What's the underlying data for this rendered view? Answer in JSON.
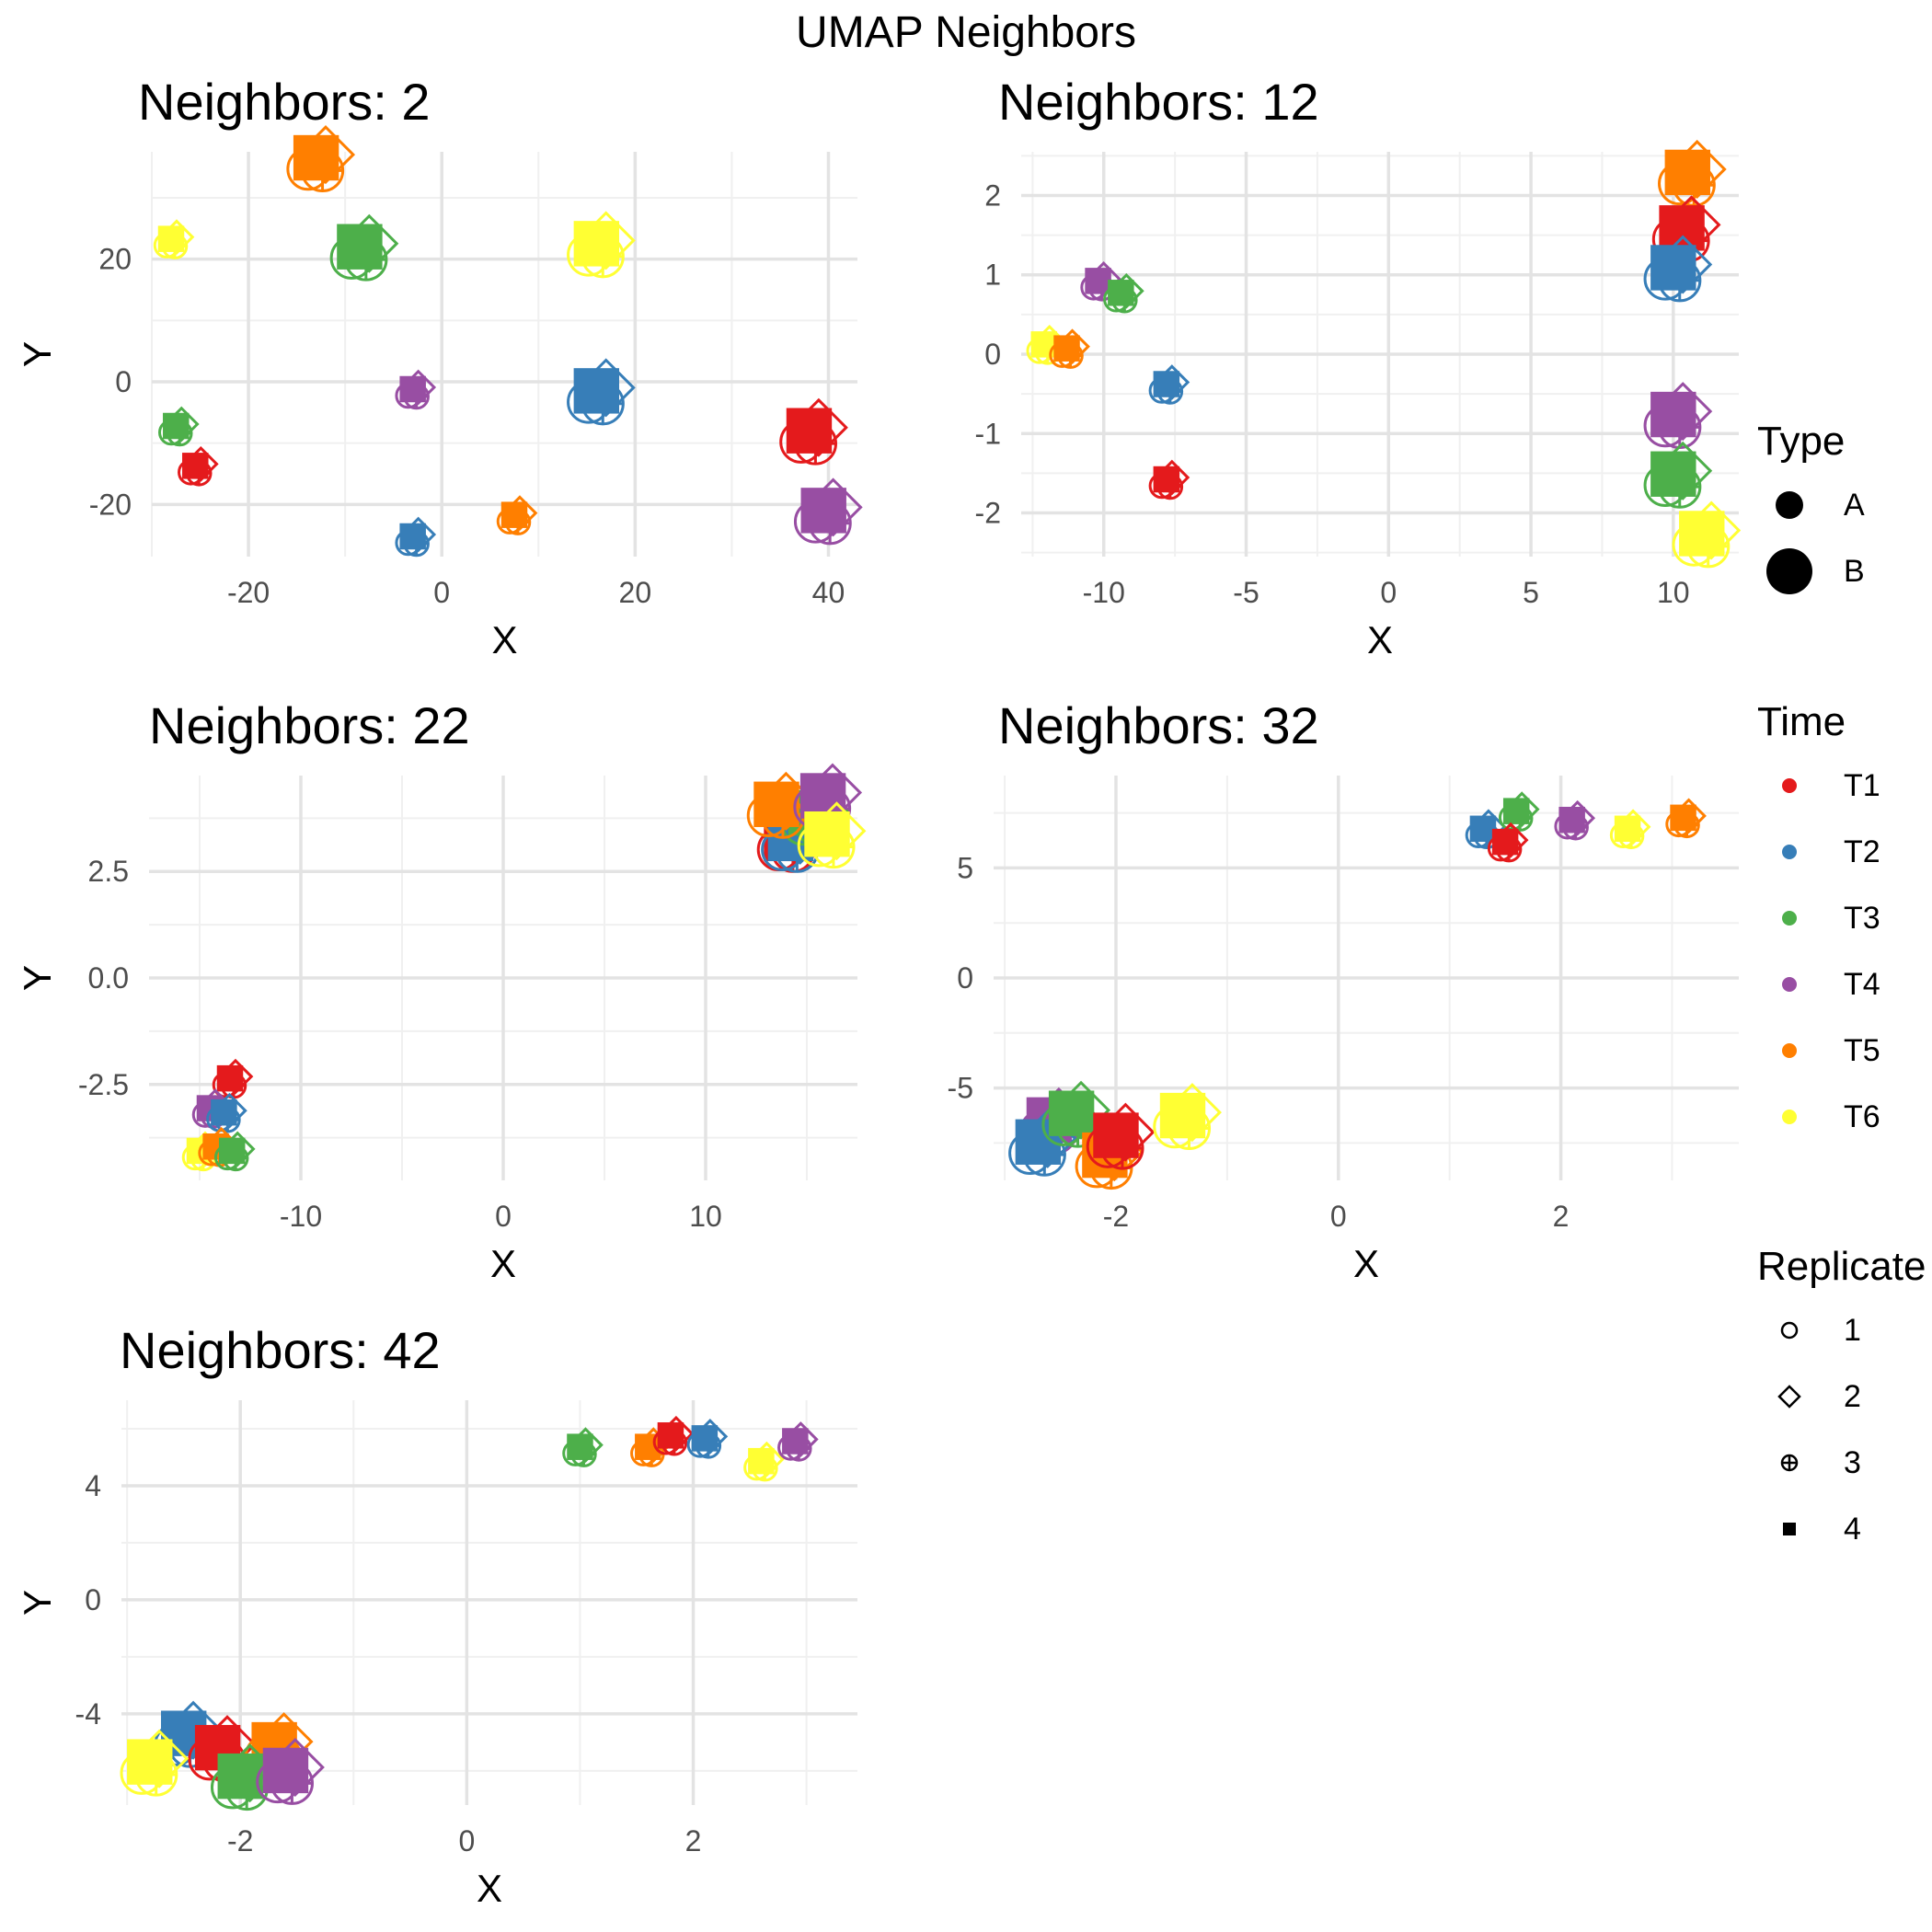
{
  "figure": {
    "suptitle": "UMAP Neighbors"
  },
  "legends": {
    "type": {
      "title": "Type",
      "items": [
        "A",
        "B"
      ]
    },
    "time": {
      "title": "Time",
      "items": [
        "T1",
        "T2",
        "T3",
        "T4",
        "T5",
        "T6"
      ],
      "colors": [
        "#e41a1c",
        "#377eb8",
        "#4daf4a",
        "#984ea3",
        "#ff7f00",
        "#ffff33"
      ]
    },
    "replicate": {
      "title": "Replicate",
      "items": [
        "1",
        "2",
        "3",
        "4"
      ],
      "shapes": [
        "circle",
        "diamond",
        "circle-plus",
        "square"
      ]
    }
  },
  "chart_data": [
    {
      "type": "scatter",
      "title": "Neighbors: 2",
      "xlabel": "X",
      "ylabel": "Y",
      "xlim": [
        -30,
        43
      ],
      "ylim": [
        -28.5,
        37.5
      ],
      "xticks": [
        -20,
        0,
        20,
        40
      ],
      "yticks": [
        -20,
        0,
        20
      ],
      "grid": true,
      "clusters": [
        {
          "time": "T5",
          "type": "B",
          "x": -13,
          "y": 36
        },
        {
          "time": "T6",
          "type": "A",
          "x": -28,
          "y": 23
        },
        {
          "time": "T3",
          "type": "B",
          "x": -8.5,
          "y": 21.5
        },
        {
          "time": "T6",
          "type": "B",
          "x": 16,
          "y": 22
        },
        {
          "time": "T3",
          "type": "A",
          "x": -27.5,
          "y": -7.5
        },
        {
          "time": "T4",
          "type": "A",
          "x": -3,
          "y": -1.5
        },
        {
          "time": "T2",
          "type": "B",
          "x": 16,
          "y": -2
        },
        {
          "time": "T1",
          "type": "B",
          "x": 38,
          "y": -8.5
        },
        {
          "time": "T1",
          "type": "A",
          "x": -25.5,
          "y": -14
        },
        {
          "time": "T4",
          "type": "B",
          "x": 39.5,
          "y": -21.5
        },
        {
          "time": "T5",
          "type": "A",
          "x": 7.5,
          "y": -22
        },
        {
          "time": "T2",
          "type": "A",
          "x": -3,
          "y": -25.5
        }
      ]
    },
    {
      "type": "scatter",
      "title": "Neighbors: 12",
      "xlabel": "X",
      "ylabel": "Y",
      "xlim": [
        -12.9,
        12.3
      ],
      "ylim": [
        -2.55,
        2.55
      ],
      "xticks": [
        -10,
        -5,
        0,
        5,
        10
      ],
      "yticks": [
        -2,
        -1,
        0,
        1,
        2
      ],
      "grid": true,
      "clusters": [
        {
          "time": "T4",
          "type": "A",
          "x": -10.2,
          "y": 0.9
        },
        {
          "time": "T3",
          "type": "A",
          "x": -9.4,
          "y": 0.75
        },
        {
          "time": "T6",
          "type": "A",
          "x": -12.1,
          "y": 0.1
        },
        {
          "time": "T5",
          "type": "A",
          "x": -11.3,
          "y": 0.05
        },
        {
          "time": "T2",
          "type": "A",
          "x": -7.8,
          "y": -0.4
        },
        {
          "time": "T1",
          "type": "A",
          "x": -7.8,
          "y": -1.6
        },
        {
          "time": "T5",
          "type": "B",
          "x": 10.5,
          "y": 2.25
        },
        {
          "time": "T1",
          "type": "B",
          "x": 10.3,
          "y": 1.55
        },
        {
          "time": "T2",
          "type": "B",
          "x": 10,
          "y": 1.05
        },
        {
          "time": "T4",
          "type": "B",
          "x": 10,
          "y": -0.8
        },
        {
          "time": "T3",
          "type": "B",
          "x": 10,
          "y": -1.55
        },
        {
          "time": "T6",
          "type": "B",
          "x": 11,
          "y": -2.3
        }
      ]
    },
    {
      "type": "scatter",
      "title": "Neighbors: 22",
      "xlabel": "X",
      "ylabel": "Y",
      "xlim": [
        -17.5,
        17.5
      ],
      "ylim": [
        -4.75,
        4.75
      ],
      "xticks": [
        -10,
        0,
        10
      ],
      "yticks": [
        -2.5,
        0.0,
        2.5
      ],
      "ytickLabels": [
        "-2.5",
        "0.0",
        "2.5"
      ],
      "grid": true,
      "clusters": [
        {
          "time": "T1",
          "type": "A",
          "x": -13.5,
          "y": -2.4
        },
        {
          "time": "T4",
          "type": "A",
          "x": -14.5,
          "y": -3.1
        },
        {
          "time": "T2",
          "type": "A",
          "x": -13.8,
          "y": -3.2
        },
        {
          "time": "T6",
          "type": "A",
          "x": -15,
          "y": -4.1
        },
        {
          "time": "T5",
          "type": "A",
          "x": -14.2,
          "y": -4.0
        },
        {
          "time": "T3",
          "type": "A",
          "x": -13.4,
          "y": -4.1
        },
        {
          "time": "T1",
          "type": "B",
          "x": 14,
          "y": 3.2
        },
        {
          "time": "T2",
          "type": "B",
          "x": 14.2,
          "y": 3.2
        },
        {
          "time": "T3",
          "type": "B",
          "x": 15.2,
          "y": 3.8
        },
        {
          "time": "T5",
          "type": "B",
          "x": 13.5,
          "y": 4.0
        },
        {
          "time": "T4",
          "type": "B",
          "x": 15.8,
          "y": 4.2
        },
        {
          "time": "T6",
          "type": "B",
          "x": 16,
          "y": 3.3
        }
      ]
    },
    {
      "type": "scatter",
      "title": "Neighbors: 32",
      "xlabel": "X",
      "ylabel": "Y",
      "xlim": [
        -3.1,
        3.6
      ],
      "ylim": [
        -9.2,
        9.2
      ],
      "xticks": [
        -2,
        0,
        2
      ],
      "yticks": [
        -5,
        0,
        5
      ],
      "grid": true,
      "clusters": [
        {
          "time": "T2",
          "type": "A",
          "x": 1.3,
          "y": 6.7
        },
        {
          "time": "T3",
          "type": "A",
          "x": 1.6,
          "y": 7.5
        },
        {
          "time": "T1",
          "type": "A",
          "x": 1.5,
          "y": 6.1
        },
        {
          "time": "T4",
          "type": "A",
          "x": 2.1,
          "y": 7.1
        },
        {
          "time": "T6",
          "type": "A",
          "x": 2.6,
          "y": 6.7
        },
        {
          "time": "T5",
          "type": "A",
          "x": 3.1,
          "y": 7.2
        },
        {
          "time": "T4",
          "type": "B",
          "x": -2.6,
          "y": -6.6
        },
        {
          "time": "T2",
          "type": "B",
          "x": -2.7,
          "y": -7.6
        },
        {
          "time": "T3",
          "type": "B",
          "x": -2.4,
          "y": -6.3
        },
        {
          "time": "T5",
          "type": "B",
          "x": -2.1,
          "y": -8.2
        },
        {
          "time": "T1",
          "type": "B",
          "x": -2.0,
          "y": -7.3
        },
        {
          "time": "T6",
          "type": "B",
          "x": -1.4,
          "y": -6.4
        }
      ]
    },
    {
      "type": "scatter",
      "title": "Neighbors: 42",
      "xlabel": "X",
      "ylabel": "Y",
      "xlim": [
        -3.05,
        3.45
      ],
      "ylim": [
        -7.2,
        7.0
      ],
      "xticks": [
        -2,
        0,
        2
      ],
      "yticks": [
        -4,
        0,
        4
      ],
      "grid": true,
      "clusters": [
        {
          "time": "T3",
          "type": "A",
          "x": 1.0,
          "y": 5.3
        },
        {
          "time": "T5",
          "type": "A",
          "x": 1.6,
          "y": 5.3
        },
        {
          "time": "T1",
          "type": "A",
          "x": 1.8,
          "y": 5.7
        },
        {
          "time": "T2",
          "type": "A",
          "x": 2.1,
          "y": 5.6
        },
        {
          "time": "T6",
          "type": "A",
          "x": 2.6,
          "y": 4.8
        },
        {
          "time": "T4",
          "type": "A",
          "x": 2.9,
          "y": 5.5
        },
        {
          "time": "T2",
          "type": "B",
          "x": -2.5,
          "y": -4.8
        },
        {
          "time": "T1",
          "type": "B",
          "x": -2.2,
          "y": -5.3
        },
        {
          "time": "T5",
          "type": "B",
          "x": -1.7,
          "y": -5.2
        },
        {
          "time": "T6",
          "type": "B",
          "x": -2.8,
          "y": -5.8
        },
        {
          "time": "T3",
          "type": "B",
          "x": -2.0,
          "y": -6.3
        },
        {
          "time": "T4",
          "type": "B",
          "x": -1.6,
          "y": -6.1
        }
      ]
    }
  ]
}
